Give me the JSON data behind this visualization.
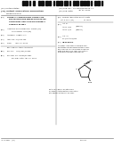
{
  "bg_color": "#ffffff",
  "text_color": "#222222",
  "line_color": "#666666",
  "barcode_color": "#111111",
  "fig_width": 1.28,
  "fig_height": 1.65,
  "dpi": 100
}
